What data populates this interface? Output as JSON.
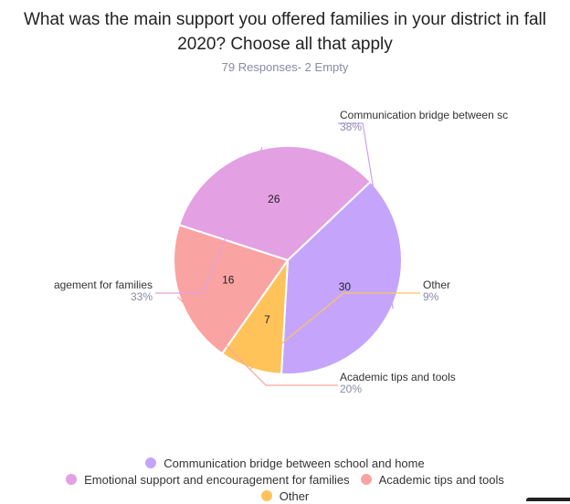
{
  "chart_title": "What was the main support you offered families in your district in fall 2020? Choose all that apply",
  "responses_text": "79 Responses- 2 Empty",
  "chart_data": {
    "type": "pie",
    "title": "What was the main support you offered families in your district in fall 2020? Choose all that apply",
    "slices": [
      {
        "name": "Communication bridge between school and home",
        "value": 30,
        "percent_label": "38%",
        "callout_label": "Communication bridge between sc",
        "color": "#c4a5fb"
      },
      {
        "name": "Other",
        "value": 7,
        "percent_label": "9%",
        "callout_label": "Other",
        "color": "#ffc35a"
      },
      {
        "name": "Academic tips and tools",
        "value": 16,
        "percent_label": "20%",
        "callout_label": "Academic tips and tools",
        "color": "#faa3a3"
      },
      {
        "name": "Emotional support and encouragement for families",
        "value": 26,
        "percent_label": "33%",
        "callout_label": "agement for families",
        "color": "#e3a0e3"
      }
    ],
    "legend_position": "bottom"
  },
  "legend": {
    "rows": [
      [
        0
      ],
      [
        3,
        2
      ],
      [
        1
      ]
    ]
  }
}
